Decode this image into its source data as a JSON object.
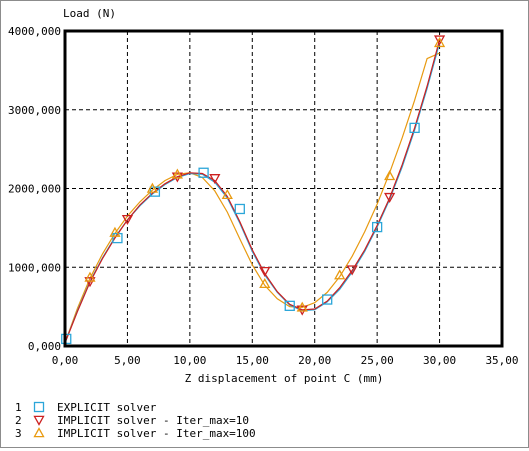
{
  "chart_data": {
    "type": "scatter",
    "title": "",
    "ylabel": "Load (N)",
    "xlabel": "Z displacement of point C (mm)",
    "xlim": [
      0,
      35
    ],
    "ylim": [
      0,
      4000
    ],
    "xticks": [
      "0,00",
      "5,00",
      "10,00",
      "15,00",
      "20,00",
      "25,00",
      "30,00",
      "35,00"
    ],
    "yticks": [
      "0,000",
      "1000,000",
      "2000,000",
      "3000,000",
      "4000,000"
    ],
    "grid": true,
    "legend_position": "bottom-left",
    "series": [
      {
        "index": "1",
        "name": "EXPLICIT solver",
        "color": "#2ba6d9",
        "marker": "square",
        "markers": [
          {
            "x": 0.1,
            "y": 90
          },
          {
            "x": 4.2,
            "y": 1370
          },
          {
            "x": 7.2,
            "y": 1960
          },
          {
            "x": 11.1,
            "y": 2200
          },
          {
            "x": 14.0,
            "y": 1740
          },
          {
            "x": 18.0,
            "y": 510
          },
          {
            "x": 21.0,
            "y": 590
          },
          {
            "x": 25.0,
            "y": 1510
          },
          {
            "x": 28.0,
            "y": 2770
          }
        ],
        "line": [
          {
            "x": 0,
            "y": 40
          },
          {
            "x": 1,
            "y": 450
          },
          {
            "x": 2,
            "y": 820
          },
          {
            "x": 3,
            "y": 1120
          },
          {
            "x": 4,
            "y": 1380
          },
          {
            "x": 5,
            "y": 1600
          },
          {
            "x": 6,
            "y": 1780
          },
          {
            "x": 7,
            "y": 1930
          },
          {
            "x": 8,
            "y": 2050
          },
          {
            "x": 9,
            "y": 2140
          },
          {
            "x": 10,
            "y": 2190
          },
          {
            "x": 11,
            "y": 2180
          },
          {
            "x": 12,
            "y": 2080
          },
          {
            "x": 13,
            "y": 1880
          },
          {
            "x": 14,
            "y": 1560
          },
          {
            "x": 15,
            "y": 1200
          },
          {
            "x": 16,
            "y": 900
          },
          {
            "x": 17,
            "y": 680
          },
          {
            "x": 18,
            "y": 520
          },
          {
            "x": 19,
            "y": 450
          },
          {
            "x": 20,
            "y": 460
          },
          {
            "x": 21,
            "y": 560
          },
          {
            "x": 22,
            "y": 720
          },
          {
            "x": 23,
            "y": 940
          },
          {
            "x": 24,
            "y": 1200
          },
          {
            "x": 25,
            "y": 1510
          },
          {
            "x": 26,
            "y": 1860
          },
          {
            "x": 27,
            "y": 2270
          },
          {
            "x": 28,
            "y": 2740
          },
          {
            "x": 29,
            "y": 3270
          },
          {
            "x": 30,
            "y": 3850
          }
        ]
      },
      {
        "index": "2",
        "name": "IMPLICIT solver - Iter_max=10",
        "color": "#cc2020",
        "marker": "triangle-down",
        "markers": [
          {
            "x": 2.0,
            "y": 820
          },
          {
            "x": 5.0,
            "y": 1610
          },
          {
            "x": 9.0,
            "y": 2150
          },
          {
            "x": 12.0,
            "y": 2130
          },
          {
            "x": 16.0,
            "y": 950
          },
          {
            "x": 19.0,
            "y": 460
          },
          {
            "x": 23.0,
            "y": 970
          },
          {
            "x": 26.0,
            "y": 1890
          },
          {
            "x": 30.0,
            "y": 3890
          }
        ],
        "line": [
          {
            "x": 0,
            "y": 40
          },
          {
            "x": 1,
            "y": 440
          },
          {
            "x": 2,
            "y": 810
          },
          {
            "x": 3,
            "y": 1110
          },
          {
            "x": 4,
            "y": 1370
          },
          {
            "x": 5,
            "y": 1600
          },
          {
            "x": 6,
            "y": 1790
          },
          {
            "x": 7,
            "y": 1940
          },
          {
            "x": 8,
            "y": 2060
          },
          {
            "x": 9,
            "y": 2150
          },
          {
            "x": 10,
            "y": 2200
          },
          {
            "x": 11,
            "y": 2190
          },
          {
            "x": 12,
            "y": 2100
          },
          {
            "x": 13,
            "y": 1900
          },
          {
            "x": 14,
            "y": 1580
          },
          {
            "x": 15,
            "y": 1220
          },
          {
            "x": 16,
            "y": 920
          },
          {
            "x": 17,
            "y": 690
          },
          {
            "x": 18,
            "y": 530
          },
          {
            "x": 19,
            "y": 460
          },
          {
            "x": 20,
            "y": 470
          },
          {
            "x": 21,
            "y": 570
          },
          {
            "x": 22,
            "y": 740
          },
          {
            "x": 23,
            "y": 960
          },
          {
            "x": 24,
            "y": 1220
          },
          {
            "x": 25,
            "y": 1530
          },
          {
            "x": 26,
            "y": 1880
          },
          {
            "x": 27,
            "y": 2300
          },
          {
            "x": 28,
            "y": 2770
          },
          {
            "x": 29,
            "y": 3300
          },
          {
            "x": 30,
            "y": 3890
          }
        ]
      },
      {
        "index": "3",
        "name": "IMPLICIT solver - Iter_max=100",
        "color": "#e89a10",
        "marker": "triangle-up",
        "markers": [
          {
            "x": 2.0,
            "y": 870
          },
          {
            "x": 4.0,
            "y": 1440
          },
          {
            "x": 7.0,
            "y": 2000
          },
          {
            "x": 9.0,
            "y": 2180
          },
          {
            "x": 13.0,
            "y": 1920
          },
          {
            "x": 16.0,
            "y": 790
          },
          {
            "x": 19.0,
            "y": 490
          },
          {
            "x": 22.0,
            "y": 900
          },
          {
            "x": 26.0,
            "y": 2160
          },
          {
            "x": 30.0,
            "y": 3850
          }
        ],
        "line": [
          {
            "x": 0,
            "y": 40
          },
          {
            "x": 1,
            "y": 480
          },
          {
            "x": 2,
            "y": 860
          },
          {
            "x": 3,
            "y": 1170
          },
          {
            "x": 4,
            "y": 1430
          },
          {
            "x": 5,
            "y": 1650
          },
          {
            "x": 6,
            "y": 1830
          },
          {
            "x": 7,
            "y": 1980
          },
          {
            "x": 8,
            "y": 2100
          },
          {
            "x": 9,
            "y": 2180
          },
          {
            "x": 10,
            "y": 2200
          },
          {
            "x": 11,
            "y": 2140
          },
          {
            "x": 12,
            "y": 1970
          },
          {
            "x": 13,
            "y": 1700
          },
          {
            "x": 14,
            "y": 1360
          },
          {
            "x": 15,
            "y": 1030
          },
          {
            "x": 16,
            "y": 770
          },
          {
            "x": 17,
            "y": 600
          },
          {
            "x": 18,
            "y": 500
          },
          {
            "x": 19,
            "y": 490
          },
          {
            "x": 20,
            "y": 550
          },
          {
            "x": 21,
            "y": 680
          },
          {
            "x": 22,
            "y": 880
          },
          {
            "x": 23,
            "y": 1140
          },
          {
            "x": 24,
            "y": 1450
          },
          {
            "x": 25,
            "y": 1800
          },
          {
            "x": 26,
            "y": 2200
          },
          {
            "x": 27,
            "y": 2640
          },
          {
            "x": 28,
            "y": 3120
          },
          {
            "x": 29,
            "y": 3650
          },
          {
            "x": 30,
            "y": 3720
          }
        ]
      }
    ]
  }
}
